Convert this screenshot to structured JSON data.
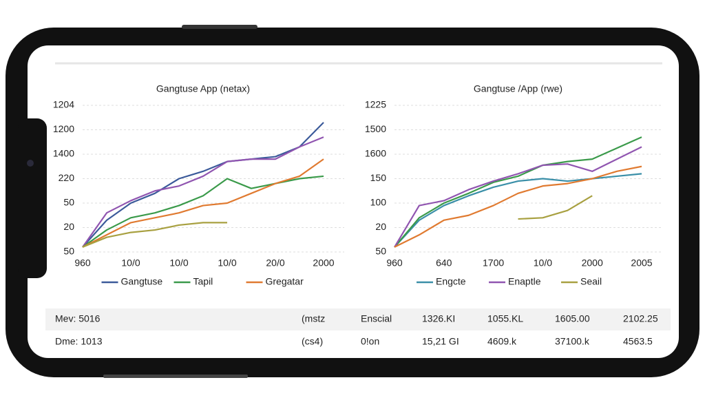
{
  "chart_data": [
    {
      "type": "line",
      "title": "Gangtuse App (netax)",
      "x": [
        0,
        0.5,
        1,
        1.5,
        2,
        2.5,
        3,
        3.5,
        4,
        4.5,
        5
      ],
      "xlim": [
        0,
        5
      ],
      "xticks": [
        {
          "value": 0,
          "label": "960"
        },
        {
          "value": 1,
          "label": "10/0"
        },
        {
          "value": 2,
          "label": "10/0"
        },
        {
          "value": 3,
          "label": "10/0"
        },
        {
          "value": 4,
          "label": "20/0"
        },
        {
          "value": 5,
          "label": "2000"
        }
      ],
      "ylim": [
        0,
        6
      ],
      "yticks": [
        {
          "value": 0,
          "label": "50"
        },
        {
          "value": 1,
          "label": "20"
        },
        {
          "value": 2,
          "label": "50"
        },
        {
          "value": 3,
          "label": "220"
        },
        {
          "value": 4,
          "label": "1400"
        },
        {
          "value": 5,
          "label": "1200"
        },
        {
          "value": 6,
          "label": "1204"
        }
      ],
      "grid": true,
      "series": [
        {
          "name": "Gangtuse",
          "color": "#3b5a9a",
          "values": [
            0.2,
            1.3,
            2.0,
            2.4,
            3.0,
            3.3,
            3.7,
            3.8,
            3.9,
            4.3,
            5.3
          ]
        },
        {
          "color": "#9055b0",
          "values": [
            0.2,
            1.6,
            2.1,
            2.5,
            2.7,
            3.1,
            3.7,
            3.8,
            3.8,
            4.3,
            4.7
          ]
        },
        {
          "name": "Tapil",
          "color": "#3a9a4a",
          "values": [
            0.2,
            0.9,
            1.4,
            1.6,
            1.9,
            2.3,
            3.0,
            2.6,
            2.8,
            3.0,
            3.1
          ]
        },
        {
          "name": "Gregatar",
          "color": "#e07a30",
          "values": [
            0.2,
            0.7,
            1.2,
            1.4,
            1.6,
            1.9,
            2.0,
            2.4,
            2.8,
            3.1,
            3.8
          ]
        },
        {
          "color": "#a8a040",
          "values": [
            0.2,
            0.6,
            0.8,
            0.9,
            1.1,
            1.2,
            1.2,
            null,
            null,
            null,
            null
          ]
        }
      ]
    },
    {
      "type": "line",
      "title": "Gangtuse /App (rwe)",
      "x": [
        0,
        0.5,
        1,
        1.5,
        2,
        2.5,
        3,
        3.5,
        4,
        4.5,
        5
      ],
      "xlim": [
        0,
        5
      ],
      "xticks": [
        {
          "value": 0,
          "label": "960"
        },
        {
          "value": 1,
          "label": "640"
        },
        {
          "value": 2,
          "label": "1700"
        },
        {
          "value": 3,
          "label": "10/0"
        },
        {
          "value": 4,
          "label": "2000"
        },
        {
          "value": 5,
          "label": "2005"
        }
      ],
      "ylim": [
        0,
        6
      ],
      "yticks": [
        {
          "value": 0,
          "label": "50"
        },
        {
          "value": 1,
          "label": "20"
        },
        {
          "value": 2,
          "label": "100"
        },
        {
          "value": 3,
          "label": "150"
        },
        {
          "value": 4,
          "label": "1600"
        },
        {
          "value": 5,
          "label": "1500"
        },
        {
          "value": 6,
          "label": "1225"
        }
      ],
      "grid": true,
      "series": [
        {
          "name": "Engcte",
          "color": "#3a8fa8",
          "values": [
            0.2,
            1.3,
            1.9,
            2.3,
            2.65,
            2.9,
            3.0,
            2.9,
            3.0,
            3.1,
            3.2
          ]
        },
        {
          "color": "#3a9a4a",
          "values": [
            0.2,
            1.4,
            2.0,
            2.4,
            2.85,
            3.1,
            3.55,
            3.7,
            3.8,
            4.25,
            4.7
          ]
        },
        {
          "name": "Enaptle",
          "color": "#9055b0",
          "values": [
            0.2,
            1.9,
            2.1,
            2.55,
            2.9,
            3.2,
            3.55,
            3.6,
            3.3,
            3.8,
            4.3
          ]
        },
        {
          "color": "#e07a30",
          "values": [
            0.2,
            0.7,
            1.3,
            1.5,
            1.9,
            2.4,
            2.7,
            2.8,
            3.0,
            3.3,
            3.5
          ]
        },
        {
          "name": "Seail",
          "color": "#a8a040",
          "values": [
            null,
            null,
            null,
            null,
            null,
            1.35,
            1.4,
            1.7,
            2.3,
            null,
            null
          ]
        }
      ]
    }
  ],
  "table": {
    "rows": [
      [
        "Mev: 5016",
        "(mstz",
        "Enscial",
        "1326.KI",
        "1055.KL",
        "1605.00",
        "2102.25"
      ],
      [
        "Dme: 1013",
        "(cs4)",
        "0!on",
        "15,21 GI",
        "4609.k",
        "37100.k",
        "4563.5"
      ]
    ]
  }
}
